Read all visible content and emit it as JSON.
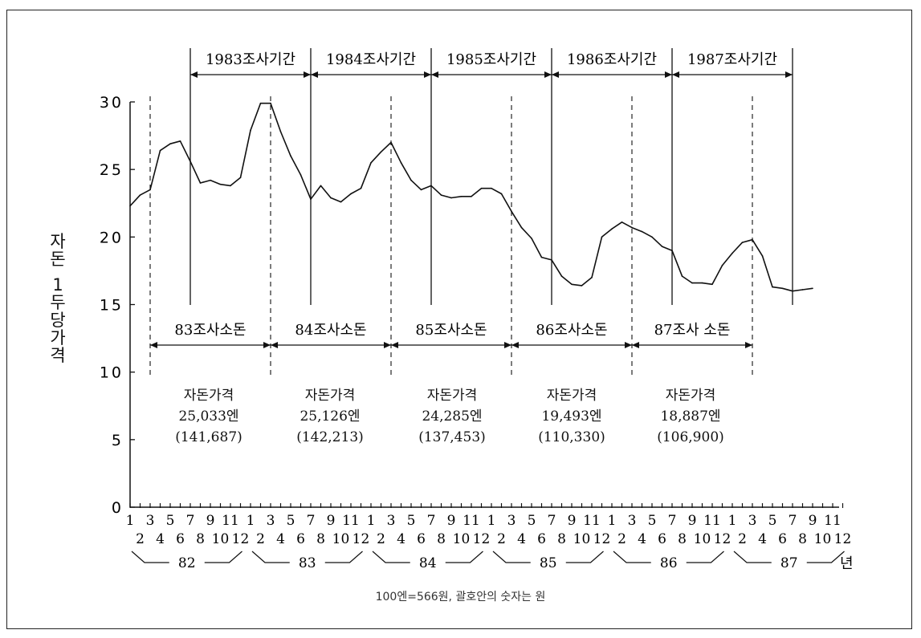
{
  "chart_data": {
    "type": "line",
    "ylabel": "자돈 1두당가격",
    "yticks": [
      "0",
      "5",
      "10",
      "15",
      "20",
      "25",
      "30"
    ],
    "ylim": [
      0,
      30
    ],
    "x_month_odd": [
      "1",
      "3",
      "5",
      "7",
      "9",
      "11",
      "1",
      "3",
      "5",
      "7",
      "9",
      "11",
      "1",
      "3",
      "5",
      "7",
      "9",
      "11",
      "1",
      "3",
      "5",
      "7",
      "9",
      "11",
      "1",
      "3",
      "5",
      "7",
      "9",
      "11",
      "1",
      "3",
      "5",
      "7",
      "9",
      "11"
    ],
    "x_month_even": [
      "2",
      "4",
      "6",
      "8",
      "10",
      "12",
      "2",
      "4",
      "6",
      "8",
      "10",
      "12",
      "2",
      "4",
      "6",
      "8",
      "10",
      "12",
      "2",
      "4",
      "6",
      "8",
      "10",
      "12",
      "2",
      "4",
      "6",
      "8",
      "10",
      "12",
      "2",
      "4",
      "6",
      "8",
      "10",
      "12"
    ],
    "years": [
      "82",
      "83",
      "84",
      "85",
      "86",
      "87"
    ],
    "year_unit": "년",
    "months_index_start": 1,
    "series": [
      {
        "values": [
          22.3,
          23.1,
          23.5,
          26.4,
          26.9,
          27.1,
          25.6,
          24.0,
          24.2,
          23.9,
          23.8,
          24.4,
          27.9,
          29.9,
          29.9,
          27.8,
          26.0,
          24.6,
          22.8,
          23.8,
          22.9,
          22.6,
          23.2,
          23.6,
          25.5,
          26.3,
          27.0,
          25.5,
          24.2,
          23.5,
          23.8,
          23.1,
          22.9,
          23.0,
          23.0,
          23.6,
          23.6,
          23.2,
          21.9,
          20.7,
          19.9,
          18.5,
          18.3,
          17.1,
          16.5,
          16.4,
          17.0,
          20.0,
          20.6,
          21.1,
          20.7,
          20.4,
          20.0,
          19.3,
          19.0,
          17.1,
          16.6,
          16.6,
          16.5,
          17.9,
          18.8,
          19.6,
          19.8,
          18.6,
          16.3,
          16.2,
          16.0,
          16.1,
          16.2
        ]
      }
    ],
    "survey_periods": [
      {
        "label": "1983조사기간",
        "start": 7,
        "end": 19
      },
      {
        "label": "1984조사기간",
        "start": 19,
        "end": 31
      },
      {
        "label": "1985조사기간",
        "start": 31,
        "end": 43
      },
      {
        "label": "1986조사기간",
        "start": 43,
        "end": 55
      },
      {
        "label": "1987조사기간",
        "start": 55,
        "end": 67
      }
    ],
    "survey_sow": [
      {
        "label": "83조사소돈",
        "start": 3,
        "end": 15
      },
      {
        "label": "84조사소돈",
        "start": 15,
        "end": 27
      },
      {
        "label": "85조사소돈",
        "start": 27,
        "end": 39
      },
      {
        "label": "86조사소돈",
        "start": 39,
        "end": 51
      },
      {
        "label": "87조사 소돈",
        "start": 51,
        "end": 63
      }
    ],
    "price_blocks": [
      {
        "title": "자돈가격",
        "yen": "25,033엔",
        "won": "(141,687)"
      },
      {
        "title": "자돈가격",
        "yen": "25,126엔",
        "won": "(142,213)"
      },
      {
        "title": "자돈가격",
        "yen": "24,285엔",
        "won": "(137,453)"
      },
      {
        "title": "자돈가격",
        "yen": "19,493엔",
        "won": "(110,330)"
      },
      {
        "title": "자돈가격",
        "yen": "18,887엔",
        "won": "(106,900)"
      }
    ],
    "footnote": "100엔=566원, 괄호안의 숫자는 원"
  }
}
